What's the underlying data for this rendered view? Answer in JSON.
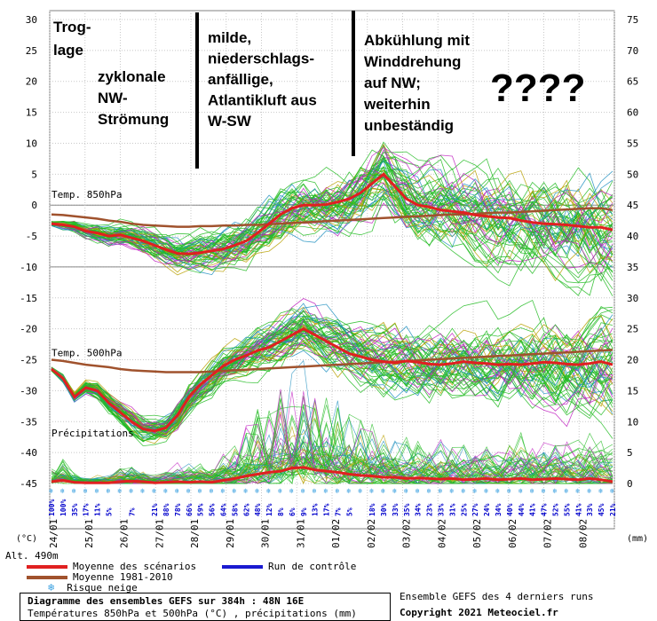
{
  "chart_data": {
    "type": "line",
    "left_axis": {
      "label": "(°C)",
      "ticks": [
        30,
        25,
        20,
        15,
        10,
        5,
        0,
        -5,
        -10,
        -15,
        -20,
        -25,
        -30,
        -35,
        -40,
        -45
      ],
      "range": [
        -45,
        30
      ]
    },
    "right_axis": {
      "label": "(mm)",
      "ticks": [
        75,
        70,
        65,
        60,
        55,
        50,
        45,
        40,
        35,
        30,
        25,
        20,
        15,
        10,
        5,
        0
      ]
    },
    "altitude_label": "Alt. 490m",
    "dates": [
      "24/01",
      "25/01",
      "26/01",
      "27/01",
      "28/01",
      "29/01",
      "30/01",
      "31/01",
      "01/02",
      "02/02",
      "03/02",
      "04/02",
      "05/02",
      "06/02",
      "07/02",
      "08/02"
    ],
    "panel_labels": {
      "t850": "Temp. 850hPa",
      "t500": "Temp. 500hPa",
      "precip": "Précipitations"
    },
    "snow_risk": [
      "100%",
      "100%",
      "35%",
      "17%",
      "11%",
      "5%",
      "",
      "7%",
      "",
      "21%",
      "88%",
      "78%",
      "66%",
      "59%",
      "56%",
      "64%",
      "58%",
      "62%",
      "48%",
      "12%",
      "8%",
      "6%",
      "9%",
      "13%",
      "17%",
      "7%",
      "5%",
      "",
      "18%",
      "30%",
      "33%",
      "35%",
      "34%",
      "23%",
      "33%",
      "31%",
      "25%",
      "27%",
      "24%",
      "34%",
      "40%",
      "44%",
      "41%",
      "47%",
      "52%",
      "55%",
      "41%",
      "33%",
      "45%",
      "21%"
    ],
    "series": [
      {
        "name": "Moyenne des scénarios",
        "color": "#e02020",
        "t850": [
          -3,
          -3.2,
          -3.5,
          -4.2,
          -4.5,
          -5,
          -4.8,
          -5.3,
          -5.8,
          -6.5,
          -7.2,
          -7.8,
          -7.9,
          -7.7,
          -7.4,
          -7.1,
          -6.5,
          -5.8,
          -4.5,
          -3,
          -1.5,
          -0.5,
          0,
          0,
          0.1,
          0.5,
          1,
          2,
          3.5,
          5,
          3,
          1,
          0,
          -0.3,
          -0.8,
          -1,
          -1.2,
          -1.6,
          -1.8,
          -2,
          -2.1,
          -2.5,
          -2.8,
          -3,
          -3.1,
          -3.2,
          -3.4,
          -3.6,
          -3.6,
          -4
        ],
        "t500": [
          -26.5,
          -28,
          -31,
          -29.5,
          -30,
          -32,
          -33.5,
          -35,
          -36.2,
          -36.5,
          -36,
          -34,
          -31,
          -29,
          -27.5,
          -26,
          -25,
          -24.3,
          -23.5,
          -23,
          -22,
          -21,
          -20,
          -21,
          -22,
          -23,
          -24,
          -24.5,
          -25,
          -25.3,
          -25.5,
          -25.2,
          -25.4,
          -25.7,
          -25.8,
          -25.6,
          -25.3,
          -25.5,
          -25.6,
          -25.8,
          -25.7,
          -25.8,
          -25.6,
          -25.4,
          -25.5,
          -25.7,
          -25.8,
          -25.6,
          -25.3,
          -25.8
        ],
        "precip": [
          0.3,
          0.5,
          0.2,
          0.1,
          0.1,
          0.1,
          0.3,
          0.4,
          0.3,
          0.1,
          0.2,
          0.3,
          0.2,
          0.3,
          0.2,
          0.5,
          0.8,
          1.2,
          1.5,
          1.8,
          2,
          2.5,
          2.6,
          2.2,
          2,
          1.8,
          1.5,
          1.3,
          1.2,
          1,
          1,
          0.8,
          0.9,
          0.8,
          0.7,
          0.8,
          0.6,
          0.7,
          0.8,
          0.6,
          0.7,
          0.8,
          0.6,
          0.7,
          0.8,
          0.7,
          0.6,
          0.8,
          0.6,
          0.3
        ]
      },
      {
        "name": "Moyenne 1981-2010",
        "color": "#a0522d",
        "t850": [
          -1.5,
          -1.6,
          -1.8,
          -2,
          -2.2,
          -2.5,
          -2.7,
          -3,
          -3.2,
          -3.3,
          -3.4,
          -3.5,
          -3.5,
          -3.4,
          -3.4,
          -3.3,
          -3.3,
          -3.2,
          -3.2,
          -3.1,
          -3,
          -2.9,
          -2.8,
          -2.7,
          -2.6,
          -2.5,
          -2.4,
          -2.3,
          -2.2,
          -2.1,
          -2,
          -1.9,
          -1.8,
          -1.7,
          -1.6,
          -1.5,
          -1.5,
          -1.4,
          -1.3,
          -1.2,
          -1.2,
          -1.1,
          -1,
          -0.9,
          -0.8,
          -0.7,
          -0.6,
          -0.5,
          -0.5,
          -0.8
        ],
        "t500": [
          -25,
          -25.2,
          -25.5,
          -25.8,
          -26,
          -26.2,
          -26.5,
          -26.7,
          -26.8,
          -26.9,
          -27,
          -27,
          -27,
          -27,
          -26.9,
          -26.8,
          -26.7,
          -26.6,
          -26.5,
          -26.4,
          -26.3,
          -26.2,
          -26.1,
          -26,
          -25.9,
          -25.8,
          -25.7,
          -25.6,
          -25.5,
          -25.4,
          -25.3,
          -25.2,
          -25.1,
          -25,
          -24.9,
          -24.8,
          -24.7,
          -24.6,
          -24.5,
          -24.4,
          -24.3,
          -24.2,
          -24.1,
          -24,
          -23.9,
          -23.8,
          -23.7,
          -23.6,
          -23.5,
          -23.4
        ]
      },
      {
        "name": "Run de contrôle",
        "color": "#1a1ad0"
      }
    ]
  },
  "annotations": {
    "a1": [
      "Trog-",
      "lage"
    ],
    "a2": [
      "zyklonale",
      "NW-",
      "Strömung"
    ],
    "a3": [
      "milde,",
      "niederschlags-",
      "anfällige,",
      "Atlantikluft aus",
      "W-SW"
    ],
    "a4": [
      "Abkühlung mit",
      "Winddrehung",
      "auf NW;",
      "weiterhin",
      "unbeständig"
    ],
    "a5": "????"
  },
  "legend": {
    "mean": "Moyenne des scénarios",
    "control": "Run de contrôle",
    "clim": "Moyenne 1981-2010",
    "snow": "Risque neige"
  },
  "info": {
    "title": "Diagramme des ensembles GEFS sur 384h : 48N 16E",
    "subtitle": "Températures 850hPa et 500hPa (°C) , précipitations (mm)",
    "ensemble_note": "Ensemble GEFS des 4 derniers runs",
    "copyright": "Copyright 2021 Meteociel.fr"
  },
  "colors": {
    "ens_green": "#22bb22",
    "ens_magenta": "#c020c0",
    "ens_olive": "#b8a000",
    "ens_cyan": "#1f8fbf",
    "axis": "#808080"
  }
}
